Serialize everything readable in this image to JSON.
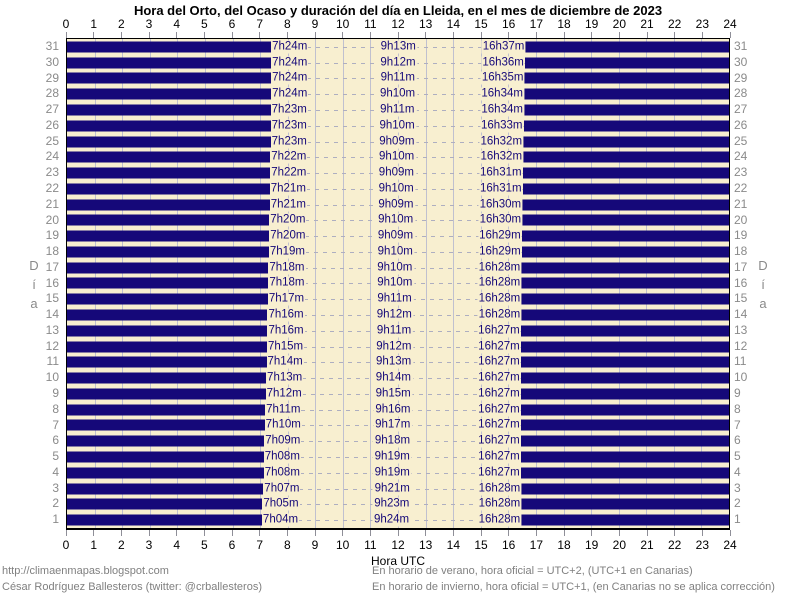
{
  "chart_data": {
    "type": "bar",
    "variant": "horizontal-night-span-bars",
    "title": "Hora del Orto, del Ocaso y duración del día en Lleida, en el mes de diciembre de 2023",
    "xlabel": "Hora UTC",
    "ylabel": "Día",
    "xlim": [
      0,
      24
    ],
    "x_ticks": [
      0,
      1,
      2,
      3,
      4,
      5,
      6,
      7,
      8,
      9,
      10,
      11,
      12,
      13,
      14,
      15,
      16,
      17,
      18,
      19,
      20,
      21,
      22,
      23,
      24
    ],
    "grid": true,
    "legend": "none",
    "rows": [
      {
        "day": 31,
        "sunrise": "7h24m",
        "daylight": "9h13m",
        "sunset": "16h37m"
      },
      {
        "day": 30,
        "sunrise": "7h24m",
        "daylight": "9h12m",
        "sunset": "16h36m"
      },
      {
        "day": 29,
        "sunrise": "7h24m",
        "daylight": "9h11m",
        "sunset": "16h35m"
      },
      {
        "day": 28,
        "sunrise": "7h24m",
        "daylight": "9h10m",
        "sunset": "16h34m"
      },
      {
        "day": 27,
        "sunrise": "7h23m",
        "daylight": "9h11m",
        "sunset": "16h34m"
      },
      {
        "day": 26,
        "sunrise": "7h23m",
        "daylight": "9h10m",
        "sunset": "16h33m"
      },
      {
        "day": 25,
        "sunrise": "7h23m",
        "daylight": "9h09m",
        "sunset": "16h32m"
      },
      {
        "day": 24,
        "sunrise": "7h22m",
        "daylight": "9h10m",
        "sunset": "16h32m"
      },
      {
        "day": 23,
        "sunrise": "7h22m",
        "daylight": "9h09m",
        "sunset": "16h31m"
      },
      {
        "day": 22,
        "sunrise": "7h21m",
        "daylight": "9h10m",
        "sunset": "16h31m"
      },
      {
        "day": 21,
        "sunrise": "7h21m",
        "daylight": "9h09m",
        "sunset": "16h30m"
      },
      {
        "day": 20,
        "sunrise": "7h20m",
        "daylight": "9h10m",
        "sunset": "16h30m"
      },
      {
        "day": 19,
        "sunrise": "7h20m",
        "daylight": "9h09m",
        "sunset": "16h29m"
      },
      {
        "day": 18,
        "sunrise": "7h19m",
        "daylight": "9h10m",
        "sunset": "16h29m"
      },
      {
        "day": 17,
        "sunrise": "7h18m",
        "daylight": "9h10m",
        "sunset": "16h28m"
      },
      {
        "day": 16,
        "sunrise": "7h18m",
        "daylight": "9h10m",
        "sunset": "16h28m"
      },
      {
        "day": 15,
        "sunrise": "7h17m",
        "daylight": "9h11m",
        "sunset": "16h28m"
      },
      {
        "day": 14,
        "sunrise": "7h16m",
        "daylight": "9h12m",
        "sunset": "16h28m"
      },
      {
        "day": 13,
        "sunrise": "7h16m",
        "daylight": "9h11m",
        "sunset": "16h27m"
      },
      {
        "day": 12,
        "sunrise": "7h15m",
        "daylight": "9h12m",
        "sunset": "16h27m"
      },
      {
        "day": 11,
        "sunrise": "7h14m",
        "daylight": "9h13m",
        "sunset": "16h27m"
      },
      {
        "day": 10,
        "sunrise": "7h13m",
        "daylight": "9h14m",
        "sunset": "16h27m"
      },
      {
        "day": 9,
        "sunrise": "7h12m",
        "daylight": "9h15m",
        "sunset": "16h27m"
      },
      {
        "day": 8,
        "sunrise": "7h11m",
        "daylight": "9h16m",
        "sunset": "16h27m"
      },
      {
        "day": 7,
        "sunrise": "7h10m",
        "daylight": "9h17m",
        "sunset": "16h27m"
      },
      {
        "day": 6,
        "sunrise": "7h09m",
        "daylight": "9h18m",
        "sunset": "16h27m"
      },
      {
        "day": 5,
        "sunrise": "7h08m",
        "daylight": "9h19m",
        "sunset": "16h27m"
      },
      {
        "day": 4,
        "sunrise": "7h08m",
        "daylight": "9h19m",
        "sunset": "16h27m"
      },
      {
        "day": 3,
        "sunrise": "7h07m",
        "daylight": "9h21m",
        "sunset": "16h28m"
      },
      {
        "day": 2,
        "sunrise": "7h05m",
        "daylight": "9h23m",
        "sunset": "16h28m"
      },
      {
        "day": 1,
        "sunrise": "7h04m",
        "daylight": "9h24m",
        "sunset": "16h28m"
      }
    ]
  },
  "colors": {
    "night_bar": "#150879",
    "day_background": "#f8efd0",
    "gridline": "#c0c0cf",
    "dash_line": "#aeaec0",
    "tick": "#8f8f98",
    "day_number_text": "#8a8a8a",
    "axis_text": "#000000",
    "footer_text": "#808080"
  },
  "footer": {
    "source_url": "http://climaenmapas.blogspot.com",
    "author": "César Rodríguez Ballesteros (twitter: @crballesteros)",
    "note_summer": "En horario de verano, hora oficial = UTC+2, (UTC+1 en Canarias)",
    "note_winter": "En horario de invierno, hora oficial = UTC+1, (en Canarias no se aplica corrección)"
  }
}
